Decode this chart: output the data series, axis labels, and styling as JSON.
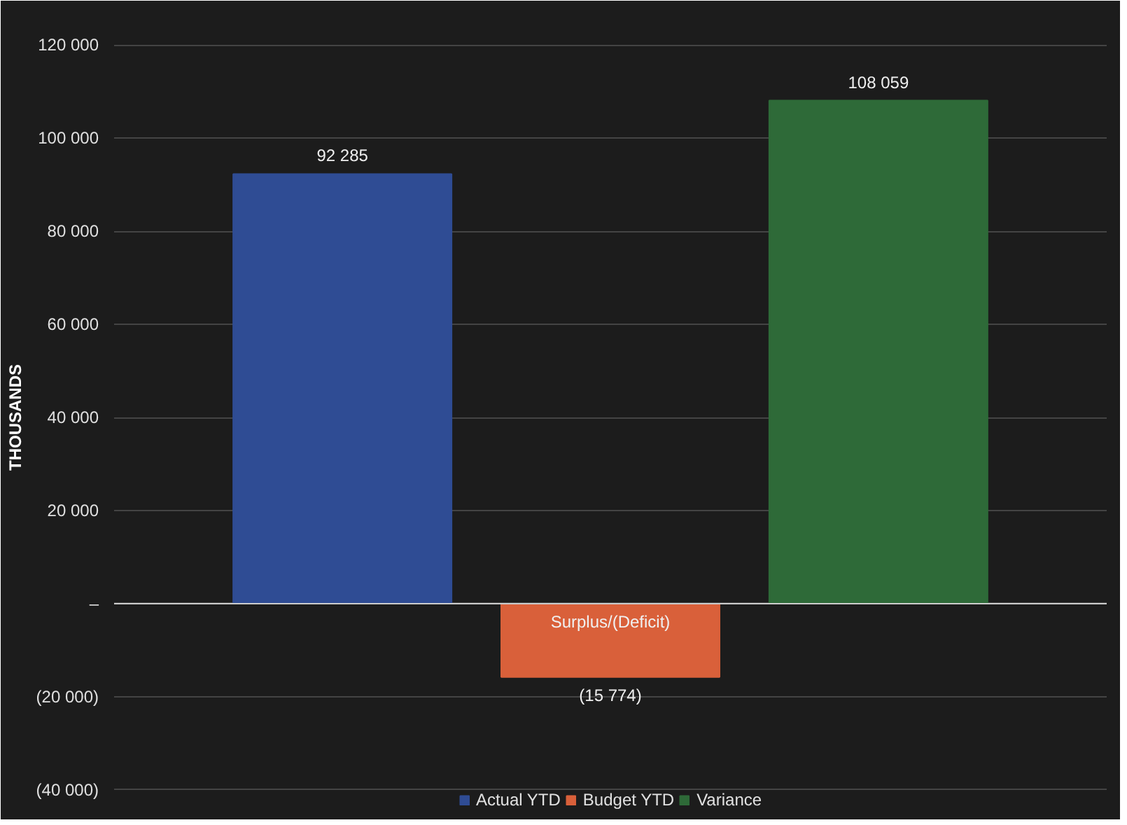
{
  "chart_data": {
    "type": "bar",
    "ylabel": "THOUSANDS",
    "categories": [
      "Surplus/(Deficit)"
    ],
    "series": [
      {
        "name": "Actual YTD",
        "color": "#2f4c94",
        "values": [
          92285
        ],
        "value_labels": [
          "92 285"
        ]
      },
      {
        "name": "Budget YTD",
        "color": "#d9603a",
        "values": [
          -15774
        ],
        "value_labels": [
          "(15 774)"
        ]
      },
      {
        "name": "Variance",
        "color": "#2e6a38",
        "values": [
          108059
        ],
        "value_labels": [
          "108 059"
        ]
      }
    ],
    "ylim": [
      -45000,
      125000
    ],
    "yticks": [
      {
        "value": 120000,
        "label": "120 000"
      },
      {
        "value": 100000,
        "label": "100 000"
      },
      {
        "value": 80000,
        "label": "80 000"
      },
      {
        "value": 60000,
        "label": "60 000"
      },
      {
        "value": 40000,
        "label": "40 000"
      },
      {
        "value": 20000,
        "label": "20 000"
      },
      {
        "value": 0,
        "label": "–"
      },
      {
        "value": -20000,
        "label": "(20 000)"
      },
      {
        "value": -40000,
        "label": "(40 000)"
      }
    ],
    "grid": "y",
    "legend": "bottom"
  }
}
